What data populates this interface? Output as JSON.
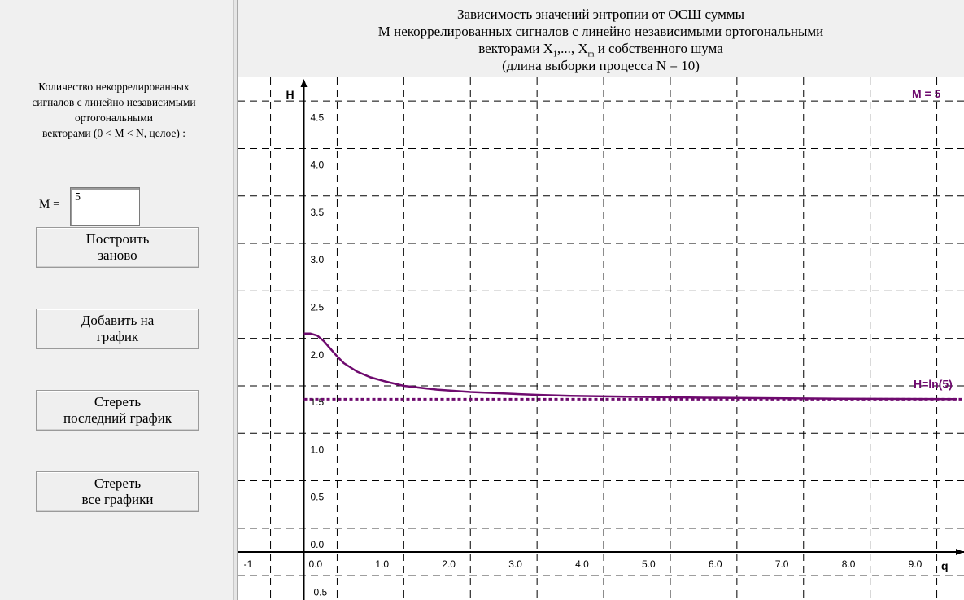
{
  "left_panel": {
    "description": "Количество некоррелированных\nсигналов с линейно независимыми\nортогональными\nвекторами (0 < M < N, целое) :",
    "m_label": "M =",
    "m_value": "5",
    "buttons": [
      "Построить\nзаново",
      "Добавить на\nграфик",
      "Стереть\nпоследний график",
      "Стереть\nвсе графики"
    ]
  },
  "title": {
    "line1": "Зависимость значений энтропии от ОСШ суммы",
    "line2": "М некоррелированных  сигналов с линейно независимыми ортогональными",
    "line3_prefix": "векторами  X",
    "line3_sub1": "1",
    "line3_mid": ",..., X",
    "line3_sub2": "m",
    "line3_suffix": "  и собственного шума",
    "line4": "(длина выборки процесса N = 10)"
  },
  "colors": {
    "curve": "#6e0a6e",
    "grid": "#000000",
    "background": "#ffffff"
  },
  "chart_data": {
    "type": "line",
    "xlabel": "q",
    "ylabel": "H",
    "xlim": [
      -1,
      9.8
    ],
    "ylim": [
      -0.5,
      4.9
    ],
    "x_ticks": [
      -1,
      0,
      1,
      2,
      3,
      4,
      5,
      6,
      7,
      8,
      9
    ],
    "x_tick_labels": [
      "-1",
      "0.0",
      "1.0",
      "2.0",
      "3.0",
      "4.0",
      "5.0",
      "6.0",
      "7.0",
      "8.0",
      "9.0"
    ],
    "y_ticks": [
      -0.5,
      0,
      0.5,
      1,
      1.5,
      2,
      2.5,
      3,
      3.5,
      4,
      4.5
    ],
    "y_tick_labels": [
      "-0.5",
      "0.0",
      "0.5",
      "1.0",
      "1.5",
      "2.0",
      "2.5",
      "3.0",
      "3.5",
      "4.0",
      "4.5"
    ],
    "grid": true,
    "series": [
      {
        "name": "M = 5",
        "x": [
          0,
          0.1,
          0.2,
          0.3,
          0.4,
          0.5,
          0.6,
          0.8,
          1.0,
          1.2,
          1.5,
          2.0,
          2.5,
          3.0,
          3.5,
          4.0,
          5.0,
          6.0,
          7.0,
          8.0,
          9.0,
          9.8
        ],
        "y": [
          2.3,
          2.3,
          2.28,
          2.22,
          2.14,
          2.06,
          1.99,
          1.9,
          1.84,
          1.8,
          1.75,
          1.71,
          1.685,
          1.67,
          1.655,
          1.645,
          1.635,
          1.625,
          1.62,
          1.615,
          1.612,
          1.61
        ]
      }
    ],
    "reference_lines": [
      {
        "label": "H=ln(5)",
        "y": 1.609
      }
    ]
  }
}
